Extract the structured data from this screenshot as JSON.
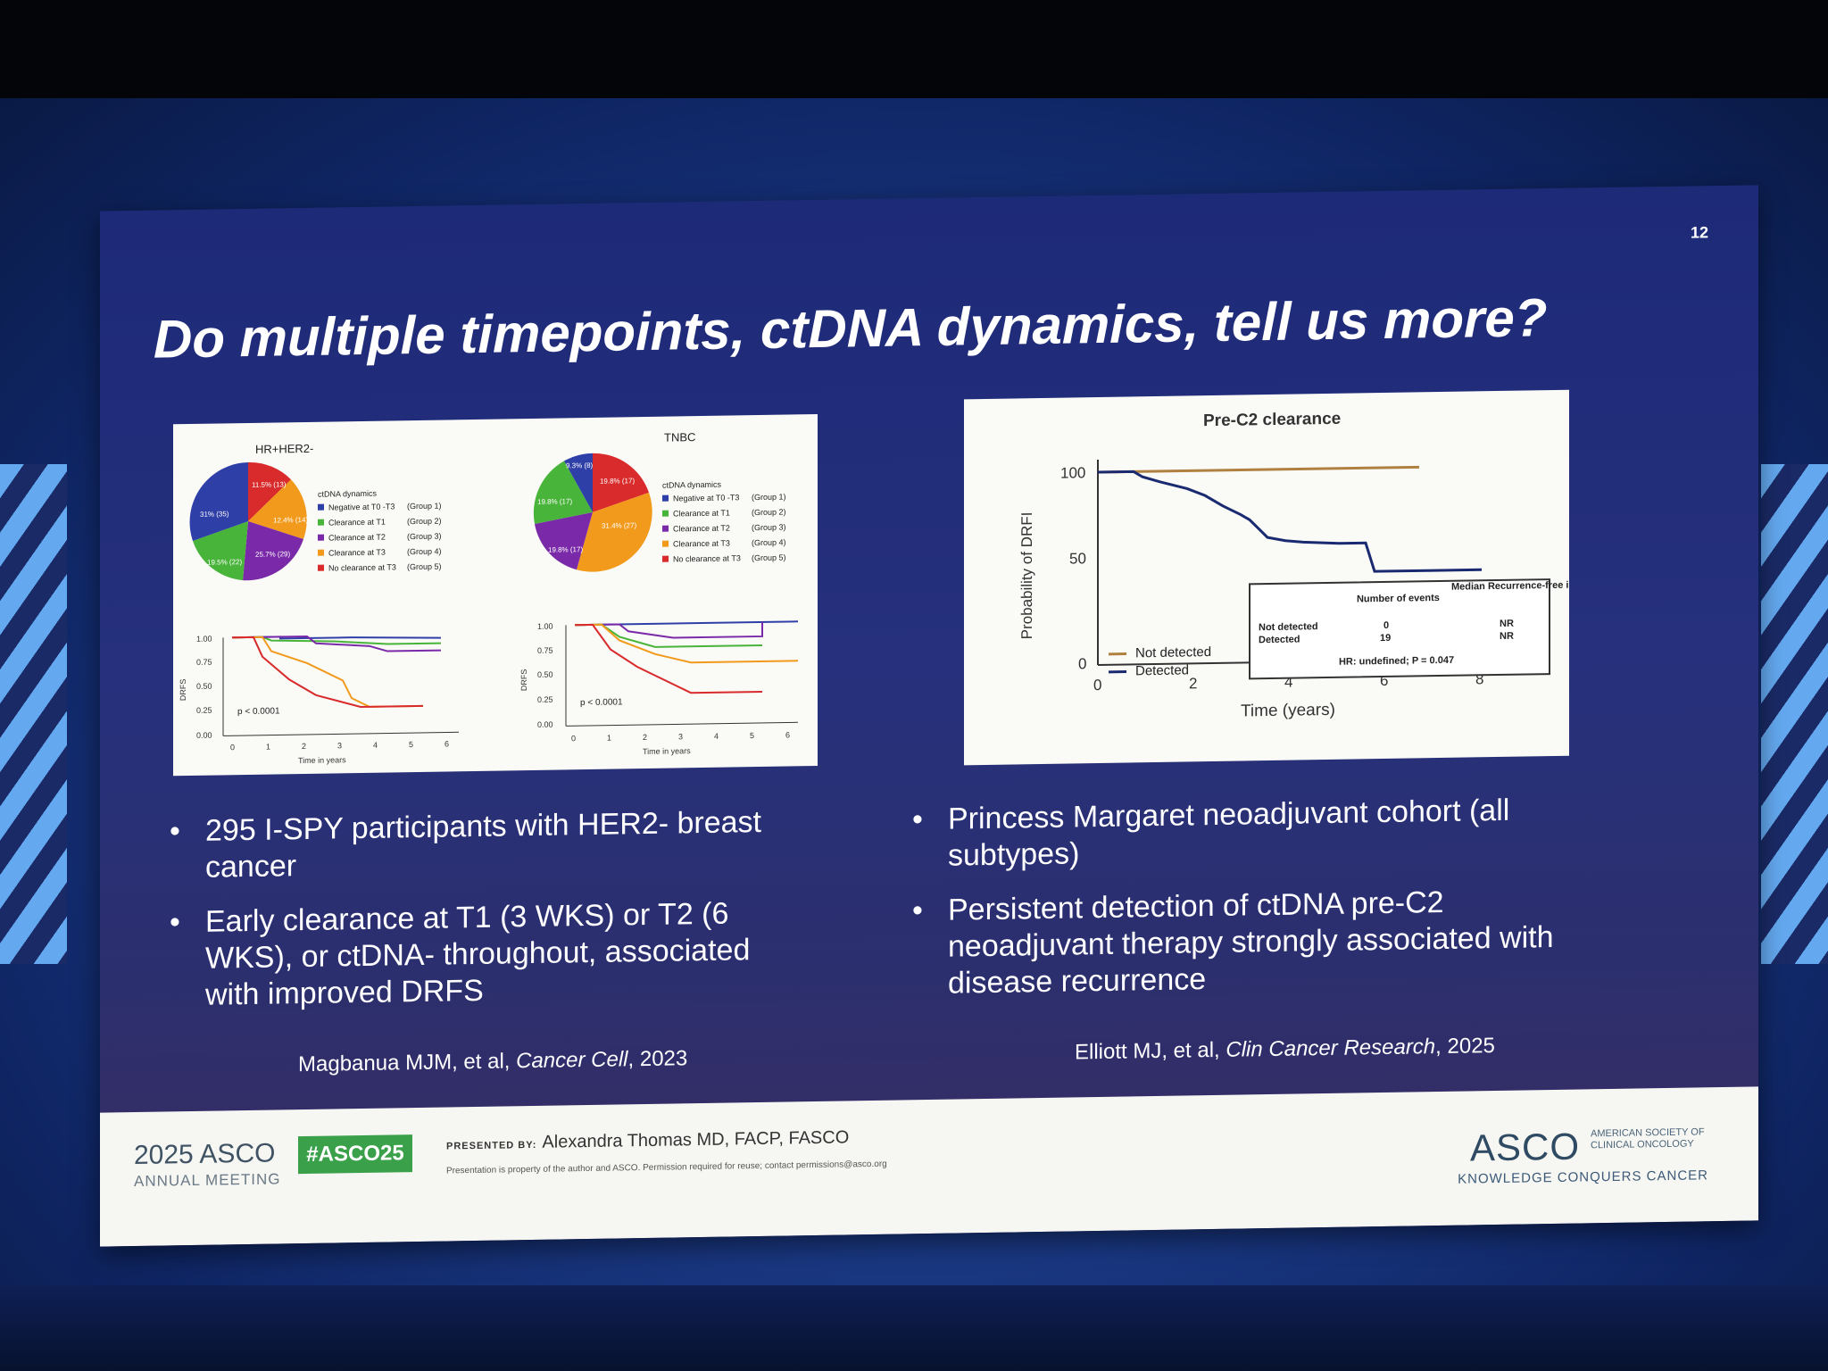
{
  "slide": {
    "number": "12",
    "title": "Do multiple timepoints, ctDNA dynamics, tell us more?"
  },
  "left_figure": {
    "hr_title": "HR+HER2-",
    "tnbc_title": "TNBC",
    "legend_title": "ctDNA dynamics",
    "legend": [
      {
        "label": "Negative at T0 -T3",
        "group": "(Group 1)",
        "color": "#2f3fa8"
      },
      {
        "label": "Clearance at T1",
        "group": "(Group 2)",
        "color": "#49b43a"
      },
      {
        "label": "Clearance at T2",
        "group": "(Group 3)",
        "color": "#7a2aa8"
      },
      {
        "label": "Clearance at T3",
        "group": "(Group 4)",
        "color": "#f29a1c"
      },
      {
        "label": "No clearance at T3",
        "group": "(Group 5)",
        "color": "#d92b2b"
      }
    ],
    "hr_pie_labels": [
      "11.5% (13)",
      "12.4% (14)",
      "25.7% (29)",
      "19.5% (22)",
      "31% (35)"
    ],
    "tnbc_pie_labels": [
      "9.3% (8)",
      "19.8% (17)",
      "31.4% (27)",
      "19.8% (17)",
      "19.8% (17)"
    ],
    "km_y_label": "DRFS",
    "km_x_label": "Time in years",
    "km_p": "p < 0.0001",
    "y_ticks": [
      "1.00",
      "0.75",
      "0.50",
      "0.25",
      "0.00"
    ],
    "x_ticks": [
      "0",
      "1",
      "2",
      "3",
      "4",
      "5",
      "6"
    ]
  },
  "right_figure": {
    "title": "Pre-C2 clearance",
    "y_label": "Probability of DRFI",
    "x_label": "Time (years)",
    "y_ticks": [
      "100",
      "50",
      "0"
    ],
    "x_ticks": [
      "0",
      "2",
      "4",
      "6",
      "8"
    ],
    "legend_not_detected": "Not detected",
    "legend_detected": "Detected",
    "table_col1": "Number of events",
    "table_col2": "Median Recurrence-free interval (years)",
    "row1_label": "Not detected",
    "row1_events": "0",
    "row1_median": "NR",
    "row2_label": "Detected",
    "row2_events": "19",
    "row2_median": "NR",
    "hr_text": "HR: undefined; P = 0.047",
    "colors": {
      "not_detected": "#b08040",
      "detected": "#1a2a70"
    }
  },
  "bullets_left": [
    "295 I-SPY participants with HER2- breast cancer",
    "Early clearance at T1 (3 WKS) or T2 (6 WKS), or ctDNA- throughout, associated with improved DRFS"
  ],
  "bullets_right": [
    "Princess Margaret neoadjuvant cohort (all subtypes)",
    "Persistent detection of ctDNA pre-C2 neoadjuvant therapy strongly associated with disease recurrence"
  ],
  "citations": {
    "left_authors": "Magbanua MJM, et al, ",
    "left_journal": "Cancer Cell",
    "left_year": ", 2023",
    "right_authors": "Elliott MJ, et al, ",
    "right_journal": "Clin Cancer Research",
    "right_year": ", 2025"
  },
  "footer": {
    "meeting_year": "2025 ASCO",
    "meeting_sub": "ANNUAL MEETING",
    "hashtag": "#ASCO25",
    "presented_label": "PRESENTED BY:",
    "presenter": "Alexandra Thomas MD, FACP, FASCO",
    "disclaimer": "Presentation is property of the author and ASCO. Permission required for reuse; contact permissions@asco.org",
    "logo": "ASCO",
    "logo_sub": "AMERICAN SOCIETY OF CLINICAL ONCOLOGY",
    "tagline": "KNOWLEDGE CONQUERS CANCER"
  }
}
